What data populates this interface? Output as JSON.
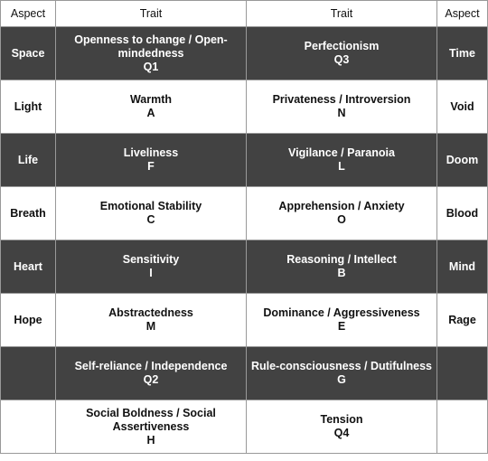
{
  "table": {
    "headers": [
      "Aspect",
      "Trait",
      "Trait",
      "Aspect"
    ],
    "colors": {
      "dark_row": "#424242",
      "light_row": "#ffffff",
      "dark_text": "#ffffff",
      "light_text": "#111111",
      "border": "#999999"
    },
    "rows": [
      {
        "shade": "dark",
        "aspect_left": "Space",
        "trait_left": {
          "name": "Openness to change / Open-mindedness",
          "code": "Q1"
        },
        "trait_right": {
          "name": "Perfectionism",
          "code": "Q3"
        },
        "aspect_right": "Time"
      },
      {
        "shade": "light",
        "aspect_left": "Light",
        "trait_left": {
          "name": "Warmth",
          "code": "A"
        },
        "trait_right": {
          "name": "Privateness / Introversion",
          "code": "N"
        },
        "aspect_right": "Void"
      },
      {
        "shade": "dark",
        "aspect_left": "Life",
        "trait_left": {
          "name": "Liveliness",
          "code": "F"
        },
        "trait_right": {
          "name": "Vigilance / Paranoia",
          "code": "L"
        },
        "aspect_right": "Doom"
      },
      {
        "shade": "light",
        "aspect_left": "Breath",
        "trait_left": {
          "name": "Emotional Stability",
          "code": "C"
        },
        "trait_right": {
          "name": "Apprehension / Anxiety",
          "code": "O"
        },
        "aspect_right": "Blood"
      },
      {
        "shade": "dark",
        "aspect_left": "Heart",
        "trait_left": {
          "name": "Sensitivity",
          "code": "I"
        },
        "trait_right": {
          "name": "Reasoning / Intellect",
          "code": "B"
        },
        "aspect_right": "Mind"
      },
      {
        "shade": "light",
        "aspect_left": "Hope",
        "trait_left": {
          "name": "Abstractedness",
          "code": "M"
        },
        "trait_right": {
          "name": "Dominance / Aggressiveness",
          "code": "E"
        },
        "aspect_right": "Rage"
      },
      {
        "shade": "dark",
        "aspect_left": "",
        "trait_left": {
          "name": "Self-reliance / Independence",
          "code": "Q2"
        },
        "trait_right": {
          "name": "Rule-consciousness / Dutifulness",
          "code": "G"
        },
        "aspect_right": ""
      },
      {
        "shade": "light",
        "aspect_left": "",
        "trait_left": {
          "name": "Social Boldness / Social Assertiveness",
          "code": "H"
        },
        "trait_right": {
          "name": "Tension",
          "code": "Q4"
        },
        "aspect_right": ""
      }
    ]
  }
}
